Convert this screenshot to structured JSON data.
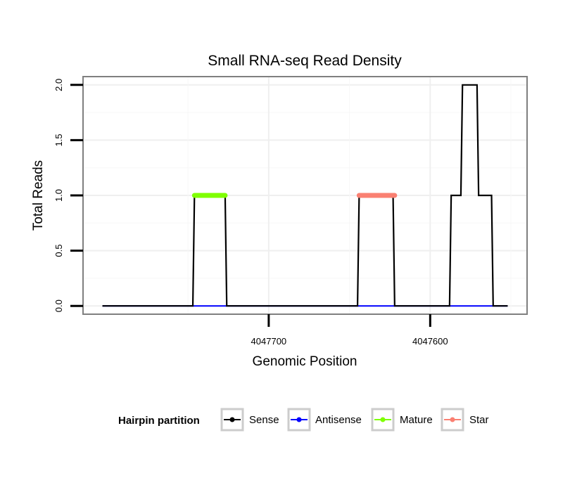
{
  "chart_data": {
    "type": "line",
    "title": "Small RNA-seq Read Density",
    "xlabel": "Genomic Position",
    "ylabel": "Total Reads",
    "x_reversed": true,
    "xlim": [
      4047815,
      4047540
    ],
    "ylim": [
      -0.075,
      2.075
    ],
    "x_ticks": [
      {
        "value": 4047700,
        "label": "4047700"
      },
      {
        "value": 4047600,
        "label": "4047600"
      }
    ],
    "y_ticks": [
      {
        "value": 0,
        "label": "0.0"
      },
      {
        "value": 0.5,
        "label": "0.5"
      },
      {
        "value": 1,
        "label": "1.0"
      },
      {
        "value": 1.5,
        "label": "1.5"
      },
      {
        "value": 2,
        "label": "2.0"
      }
    ],
    "grid": true,
    "legend": {
      "position": "bottom",
      "title": "Hairpin partition"
    },
    "series": [
      {
        "name": "Sense",
        "color": "#000000",
        "x": [
          4047803,
          4047747,
          4047746,
          4047727,
          4047726,
          4047645,
          4047644,
          4047623,
          4047622,
          4047588,
          4047587,
          4047581,
          4047580,
          4047571,
          4047570,
          4047562,
          4047561,
          4047552
        ],
        "y": [
          0,
          0,
          1,
          1,
          0,
          0,
          1,
          1,
          0,
          0,
          1,
          1,
          2,
          2,
          1,
          1,
          0,
          0
        ]
      },
      {
        "name": "Antisense",
        "color": "#0000ff",
        "x": [
          4047803,
          4047552
        ],
        "y": [
          0,
          0
        ]
      },
      {
        "name": "Mature",
        "color": "#7fff00",
        "x": [
          4047746,
          4047727
        ],
        "y": [
          1,
          1
        ]
      },
      {
        "name": "Star",
        "color": "#fa8072",
        "x": [
          4047644,
          4047622
        ],
        "y": [
          1,
          1
        ]
      }
    ]
  }
}
